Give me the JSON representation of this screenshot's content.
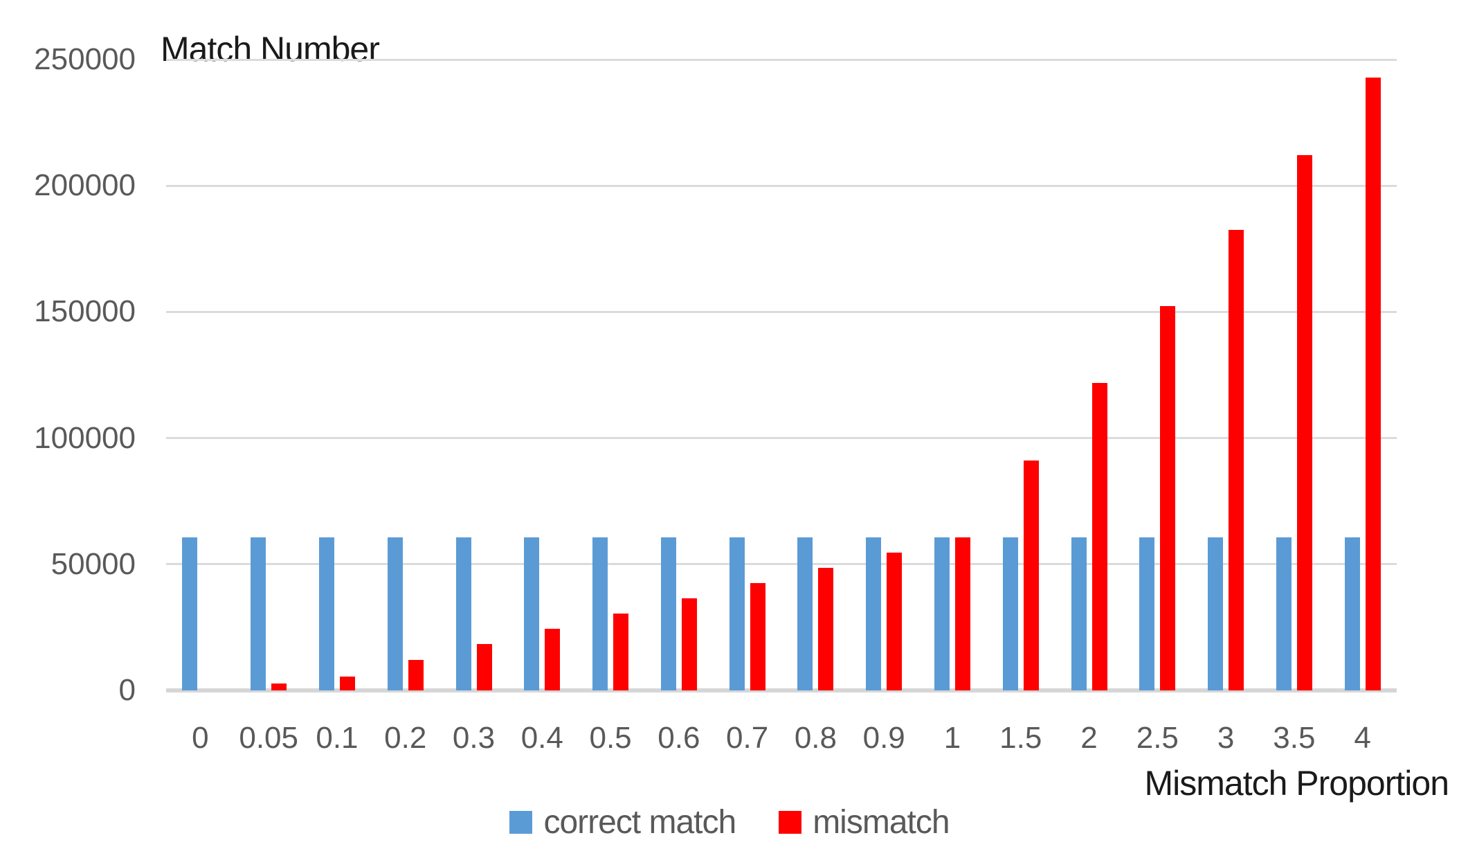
{
  "chart_data": {
    "type": "bar",
    "title": "",
    "ylabel": "Match Number",
    "xlabel": "Mismatch Proportion",
    "categories": [
      "0",
      "0.05",
      "0.1",
      "0.2",
      "0.3",
      "0.4",
      "0.5",
      "0.6",
      "0.7",
      "0.8",
      "0.9",
      "1",
      "1.5",
      "2",
      "2.5",
      "3",
      "3.5",
      "4"
    ],
    "series": [
      {
        "name": "correct match",
        "color": "#5B9BD5",
        "values": [
          60700,
          60700,
          60700,
          60700,
          60700,
          60700,
          60700,
          60700,
          60700,
          60700,
          60700,
          60700,
          60700,
          60700,
          60700,
          60700,
          60700,
          60700
        ]
      },
      {
        "name": "mismatch",
        "color": "#FF0000",
        "values": [
          0,
          2700,
          5600,
          12100,
          18500,
          24500,
          30500,
          36500,
          42500,
          48500,
          54600,
          60700,
          91000,
          121800,
          152200,
          182400,
          212200,
          242900
        ]
      }
    ],
    "y_ticks": [
      0,
      50000,
      100000,
      150000,
      200000,
      250000
    ],
    "ylim": [
      0,
      250000
    ],
    "grid": "horizontal",
    "legend_position": "bottom",
    "gridline_color": "#DBDBDB",
    "tick_label_color": "#595959",
    "axis_title_color": "#1a1a1a"
  }
}
